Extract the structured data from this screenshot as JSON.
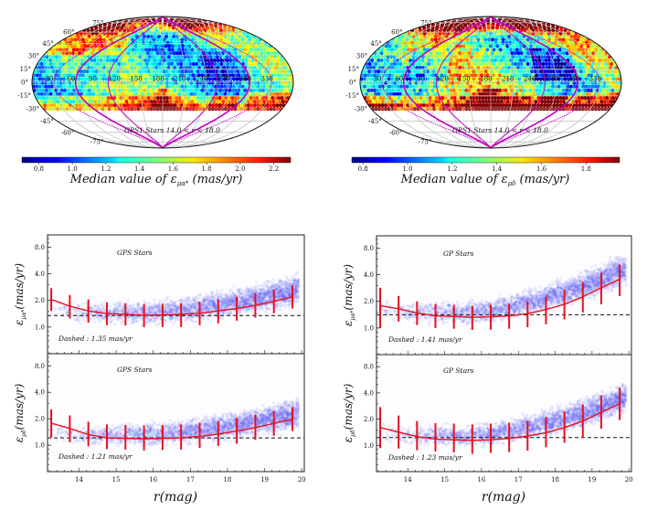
{
  "chart_data": [
    {
      "type": "heatmap",
      "projection": "mollweide",
      "panel": "top-left",
      "lon_labels": [
        "30",
        "60",
        "90",
        "120",
        "150",
        "180",
        "210",
        "240",
        "270",
        "300",
        "330"
      ],
      "lat_labels": [
        "75°",
        "60°",
        "45°",
        "30°",
        "15°",
        "0°",
        "-15°",
        "-30°",
        "-45°",
        "-60°",
        "-75°"
      ],
      "annotation": "GPS1 Stars   14.0 < r < 18.0",
      "colorbar": {
        "label_prefix": "Median value of ",
        "label_symbol": "ε",
        "label_sub": "μα*",
        "label_suffix": " (mas/yr)",
        "ticks": [
          "0.8",
          "1.0",
          "1.2",
          "1.4",
          "1.6",
          "1.8",
          "2.0",
          "2.2"
        ],
        "range": [
          0.7,
          2.3
        ],
        "colormap": "jet"
      },
      "data_coverage_dec_min": -30,
      "seed": 11
    },
    {
      "type": "heatmap",
      "projection": "mollweide",
      "panel": "top-right",
      "lon_labels": [
        "30",
        "60",
        "90",
        "120",
        "150",
        "180",
        "210",
        "240",
        "270",
        "300",
        "330"
      ],
      "lat_labels": [
        "75°",
        "60°",
        "45°",
        "30°",
        "15°",
        "0°",
        "-15°",
        "-30°",
        "-45°",
        "-60°",
        "-75°"
      ],
      "annotation": "GPS1 Stars   14.0 < r < 18.0",
      "colorbar": {
        "label_prefix": "Median value of ",
        "label_symbol": "ε",
        "label_sub": "μδ",
        "label_suffix": " (mas/yr)",
        "ticks": [
          "0.8",
          "1.0",
          "1.2",
          "1.4",
          "1.6",
          "1.8"
        ],
        "range": [
          0.75,
          1.95
        ],
        "colormap": "jet"
      },
      "data_coverage_dec_min": -30,
      "seed": 29
    },
    {
      "type": "scatter",
      "panel": "bottom-left-upper",
      "title": "GPS Stars",
      "ylabel_symbol": "ε",
      "ylabel_sub": "μα*",
      "ylabel_suffix": "(mas/yr)",
      "yscale": "log",
      "yticks": [
        "8.0",
        "4.0",
        "2.0",
        "1.0"
      ],
      "ytick_values": [
        8,
        4,
        2,
        1
      ],
      "ylim": [
        0.5,
        11
      ],
      "xlim": [
        13.15,
        20.07
      ],
      "dashed_value": 1.35,
      "dashed_label": "Dashed :  1.35 mas/yr",
      "binned_x": [
        13.25,
        13.75,
        14.25,
        14.75,
        15.25,
        15.75,
        16.25,
        16.75,
        17.25,
        17.75,
        18.25,
        18.75,
        19.25,
        19.75
      ],
      "median": [
        2.05,
        1.72,
        1.52,
        1.42,
        1.39,
        1.36,
        1.37,
        1.39,
        1.43,
        1.52,
        1.62,
        1.76,
        1.95,
        2.2
      ],
      "err_low": [
        1.52,
        1.25,
        1.12,
        1.05,
        1.04,
        1.0,
        1.0,
        1.0,
        1.05,
        1.1,
        1.18,
        1.28,
        1.43,
        1.62
      ],
      "err_high": [
        2.75,
        2.3,
        2.05,
        1.9,
        1.86,
        1.82,
        1.83,
        1.86,
        1.93,
        2.05,
        2.2,
        2.4,
        2.65,
        2.95
      ],
      "cloud": {
        "spread_center": 1.45,
        "curvature": 0.16,
        "seed": 3
      }
    },
    {
      "type": "scatter",
      "panel": "bottom-left-lower",
      "title": "GPS Stars",
      "ylabel_symbol": "ε",
      "ylabel_sub": "μδ",
      "ylabel_suffix": "(mas/yr)",
      "yscale": "log",
      "yticks": [
        "8.0",
        "4.0",
        "2.0",
        "1.0"
      ],
      "ytick_values": [
        8,
        4,
        2,
        1
      ],
      "ylim": [
        0.5,
        11
      ],
      "xlim": [
        13.15,
        20.07
      ],
      "xticks": [
        "14",
        "15",
        "16",
        "17",
        "18",
        "19",
        "20"
      ],
      "xtick_values": [
        14,
        15,
        16,
        17,
        18,
        19,
        20
      ],
      "xlabel": "r(mag)",
      "dashed_value": 1.21,
      "dashed_label": "Dashed :  1.21 mas/yr",
      "binned_x": [
        13.25,
        13.75,
        14.25,
        14.75,
        15.25,
        15.75,
        16.25,
        16.75,
        17.25,
        17.75,
        18.25,
        18.75,
        19.25,
        19.75
      ],
      "median": [
        1.78,
        1.55,
        1.32,
        1.21,
        1.2,
        1.18,
        1.2,
        1.21,
        1.26,
        1.34,
        1.45,
        1.58,
        1.77,
        1.98
      ],
      "err_low": [
        1.22,
        1.08,
        0.97,
        0.9,
        0.89,
        0.87,
        0.88,
        0.89,
        0.93,
        0.98,
        1.04,
        1.15,
        1.28,
        1.45
      ],
      "err_high": [
        2.55,
        2.18,
        1.85,
        1.72,
        1.7,
        1.68,
        1.7,
        1.72,
        1.78,
        1.88,
        2.05,
        2.22,
        2.45,
        2.72
      ],
      "cloud": {
        "spread_center": 1.3,
        "curvature": 0.15,
        "seed": 5
      }
    },
    {
      "type": "scatter",
      "panel": "bottom-right-upper",
      "title": "GP Stars",
      "ylabel_symbol": "ε",
      "ylabel_sub": "μα*",
      "ylabel_suffix": "(mas/yr)",
      "yscale": "log",
      "yticks": [
        "8.0",
        "4.0",
        "2.0",
        "1.0"
      ],
      "ytick_values": [
        8,
        4,
        2,
        1
      ],
      "ylim": [
        0.5,
        11
      ],
      "xlim": [
        13.15,
        20.07
      ],
      "dashed_value": 1.41,
      "dashed_label": "Dashed :  1.41 mas/yr",
      "binned_x": [
        13.25,
        13.75,
        14.25,
        14.75,
        15.25,
        15.75,
        16.25,
        16.75,
        17.25,
        17.75,
        18.25,
        18.75,
        19.25,
        19.75
      ],
      "median": [
        1.78,
        1.65,
        1.48,
        1.37,
        1.35,
        1.32,
        1.34,
        1.37,
        1.45,
        1.62,
        1.85,
        2.25,
        2.85,
        3.55
      ],
      "err_low": [
        1.0,
        1.18,
        1.08,
        1.0,
        0.98,
        0.95,
        0.96,
        0.98,
        1.02,
        1.1,
        1.25,
        1.5,
        1.85,
        2.3
      ],
      "err_high": [
        2.85,
        2.3,
        2.0,
        1.87,
        1.83,
        1.78,
        1.82,
        1.87,
        2.0,
        2.25,
        2.7,
        3.3,
        4.2,
        5.2
      ],
      "cloud": {
        "spread_center": 1.5,
        "curvature": 0.3,
        "seed": 7
      }
    },
    {
      "type": "scatter",
      "panel": "bottom-right-lower",
      "title": "GP Stars",
      "ylabel_symbol": "ε",
      "ylabel_sub": "μδ",
      "ylabel_suffix": "(mas/yr)",
      "yscale": "log",
      "yticks": [
        "8.0",
        "4.0",
        "2.0",
        "1.0"
      ],
      "ytick_values": [
        8,
        4,
        2,
        1
      ],
      "ylim": [
        0.5,
        11
      ],
      "xlim": [
        13.15,
        20.07
      ],
      "xticks": [
        "14",
        "15",
        "16",
        "17",
        "18",
        "19",
        "20"
      ],
      "xtick_values": [
        14,
        15,
        16,
        17,
        18,
        19,
        20
      ],
      "xlabel": "r(mag)",
      "dashed_value": 1.23,
      "dashed_label": "Dashed :  1.23 mas/yr",
      "binned_x": [
        13.25,
        13.75,
        14.25,
        14.75,
        15.25,
        15.75,
        16.25,
        16.75,
        17.25,
        17.75,
        18.25,
        18.75,
        19.25,
        19.75
      ],
      "median": [
        1.6,
        1.42,
        1.26,
        1.18,
        1.16,
        1.14,
        1.16,
        1.2,
        1.28,
        1.4,
        1.6,
        1.9,
        2.4,
        3.0
      ],
      "err_low": [
        0.93,
        0.92,
        0.88,
        0.85,
        0.83,
        0.8,
        0.82,
        0.84,
        0.87,
        0.95,
        1.07,
        1.25,
        1.55,
        1.95
      ],
      "err_high": [
        2.75,
        2.2,
        1.9,
        1.8,
        1.78,
        1.74,
        1.78,
        1.82,
        1.92,
        2.12,
        2.45,
        2.95,
        3.75,
        4.6
      ],
      "cloud": {
        "spread_center": 1.28,
        "curvature": 0.27,
        "seed": 9
      }
    }
  ]
}
